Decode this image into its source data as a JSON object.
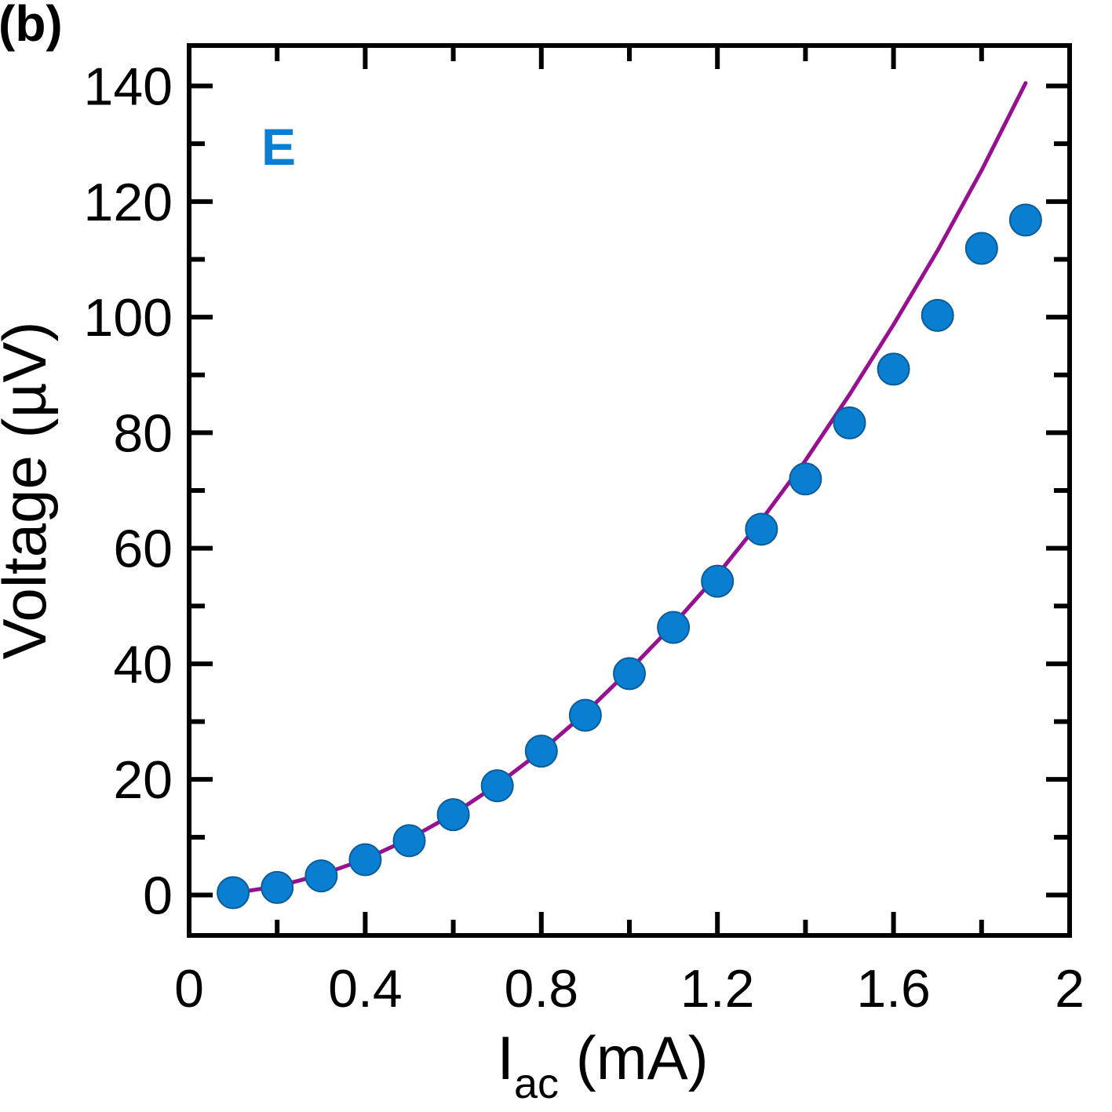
{
  "panel_label": "(b)",
  "colors": {
    "points": "#0a7fd1",
    "point_edge": "#0b5c99",
    "fit_line": "#97108f",
    "axes": "#000000"
  },
  "chart_data": {
    "type": "scatter",
    "title": "",
    "xlabel": "I",
    "xlabel_sub": "ac",
    "xlabel_unit": " (mA)",
    "ylabel": "Voltage (µV)",
    "xlim": [
      0,
      2
    ],
    "ylim": [
      -7,
      147
    ],
    "x_ticks": [
      0,
      0.4,
      0.8,
      1.2,
      1.6,
      2
    ],
    "x_tick_labels": [
      "0",
      "0.4",
      "0.8",
      "1.2",
      "1.6",
      "2"
    ],
    "x_minor_ticks": [
      0.2,
      0.6,
      1.0,
      1.4,
      1.8
    ],
    "y_ticks": [
      0,
      20,
      40,
      60,
      80,
      100,
      120,
      140
    ],
    "y_tick_labels": [
      "0",
      "20",
      "40",
      "60",
      "80",
      "100",
      "120",
      "140"
    ],
    "y_minor_ticks": [
      10,
      30,
      50,
      70,
      90,
      110,
      130
    ],
    "grid": false,
    "series": [
      {
        "name": "E",
        "kind": "points",
        "x": [
          0.1,
          0.2,
          0.3,
          0.4,
          0.5,
          0.6,
          0.7,
          0.8,
          0.9,
          1.0,
          1.1,
          1.2,
          1.3,
          1.4,
          1.5,
          1.6,
          1.7,
          1.8,
          1.9
        ],
        "y": [
          0.4,
          1.3,
          3.3,
          6.1,
          9.4,
          13.9,
          18.9,
          24.9,
          31.1,
          38.3,
          46.3,
          54.3,
          63.3,
          72.0,
          81.7,
          91.0,
          100.3,
          111.9,
          116.8
        ]
      },
      {
        "name": "fit",
        "kind": "line",
        "x": [
          0.1,
          0.2,
          0.3,
          0.4,
          0.5,
          0.6,
          0.7,
          0.8,
          0.9,
          1.0,
          1.1,
          1.2,
          1.3,
          1.4,
          1.5,
          1.6,
          1.7,
          1.8,
          1.9
        ],
        "y": [
          0.3,
          1.5,
          3.5,
          6.2,
          9.7,
          14.0,
          19.1,
          24.9,
          31.5,
          38.9,
          46.8,
          55.4,
          64.9,
          75.2,
          86.6,
          98.7,
          111.5,
          125.4,
          140.5
        ]
      }
    ],
    "legend": {
      "text": "E",
      "position": "top-left"
    }
  }
}
